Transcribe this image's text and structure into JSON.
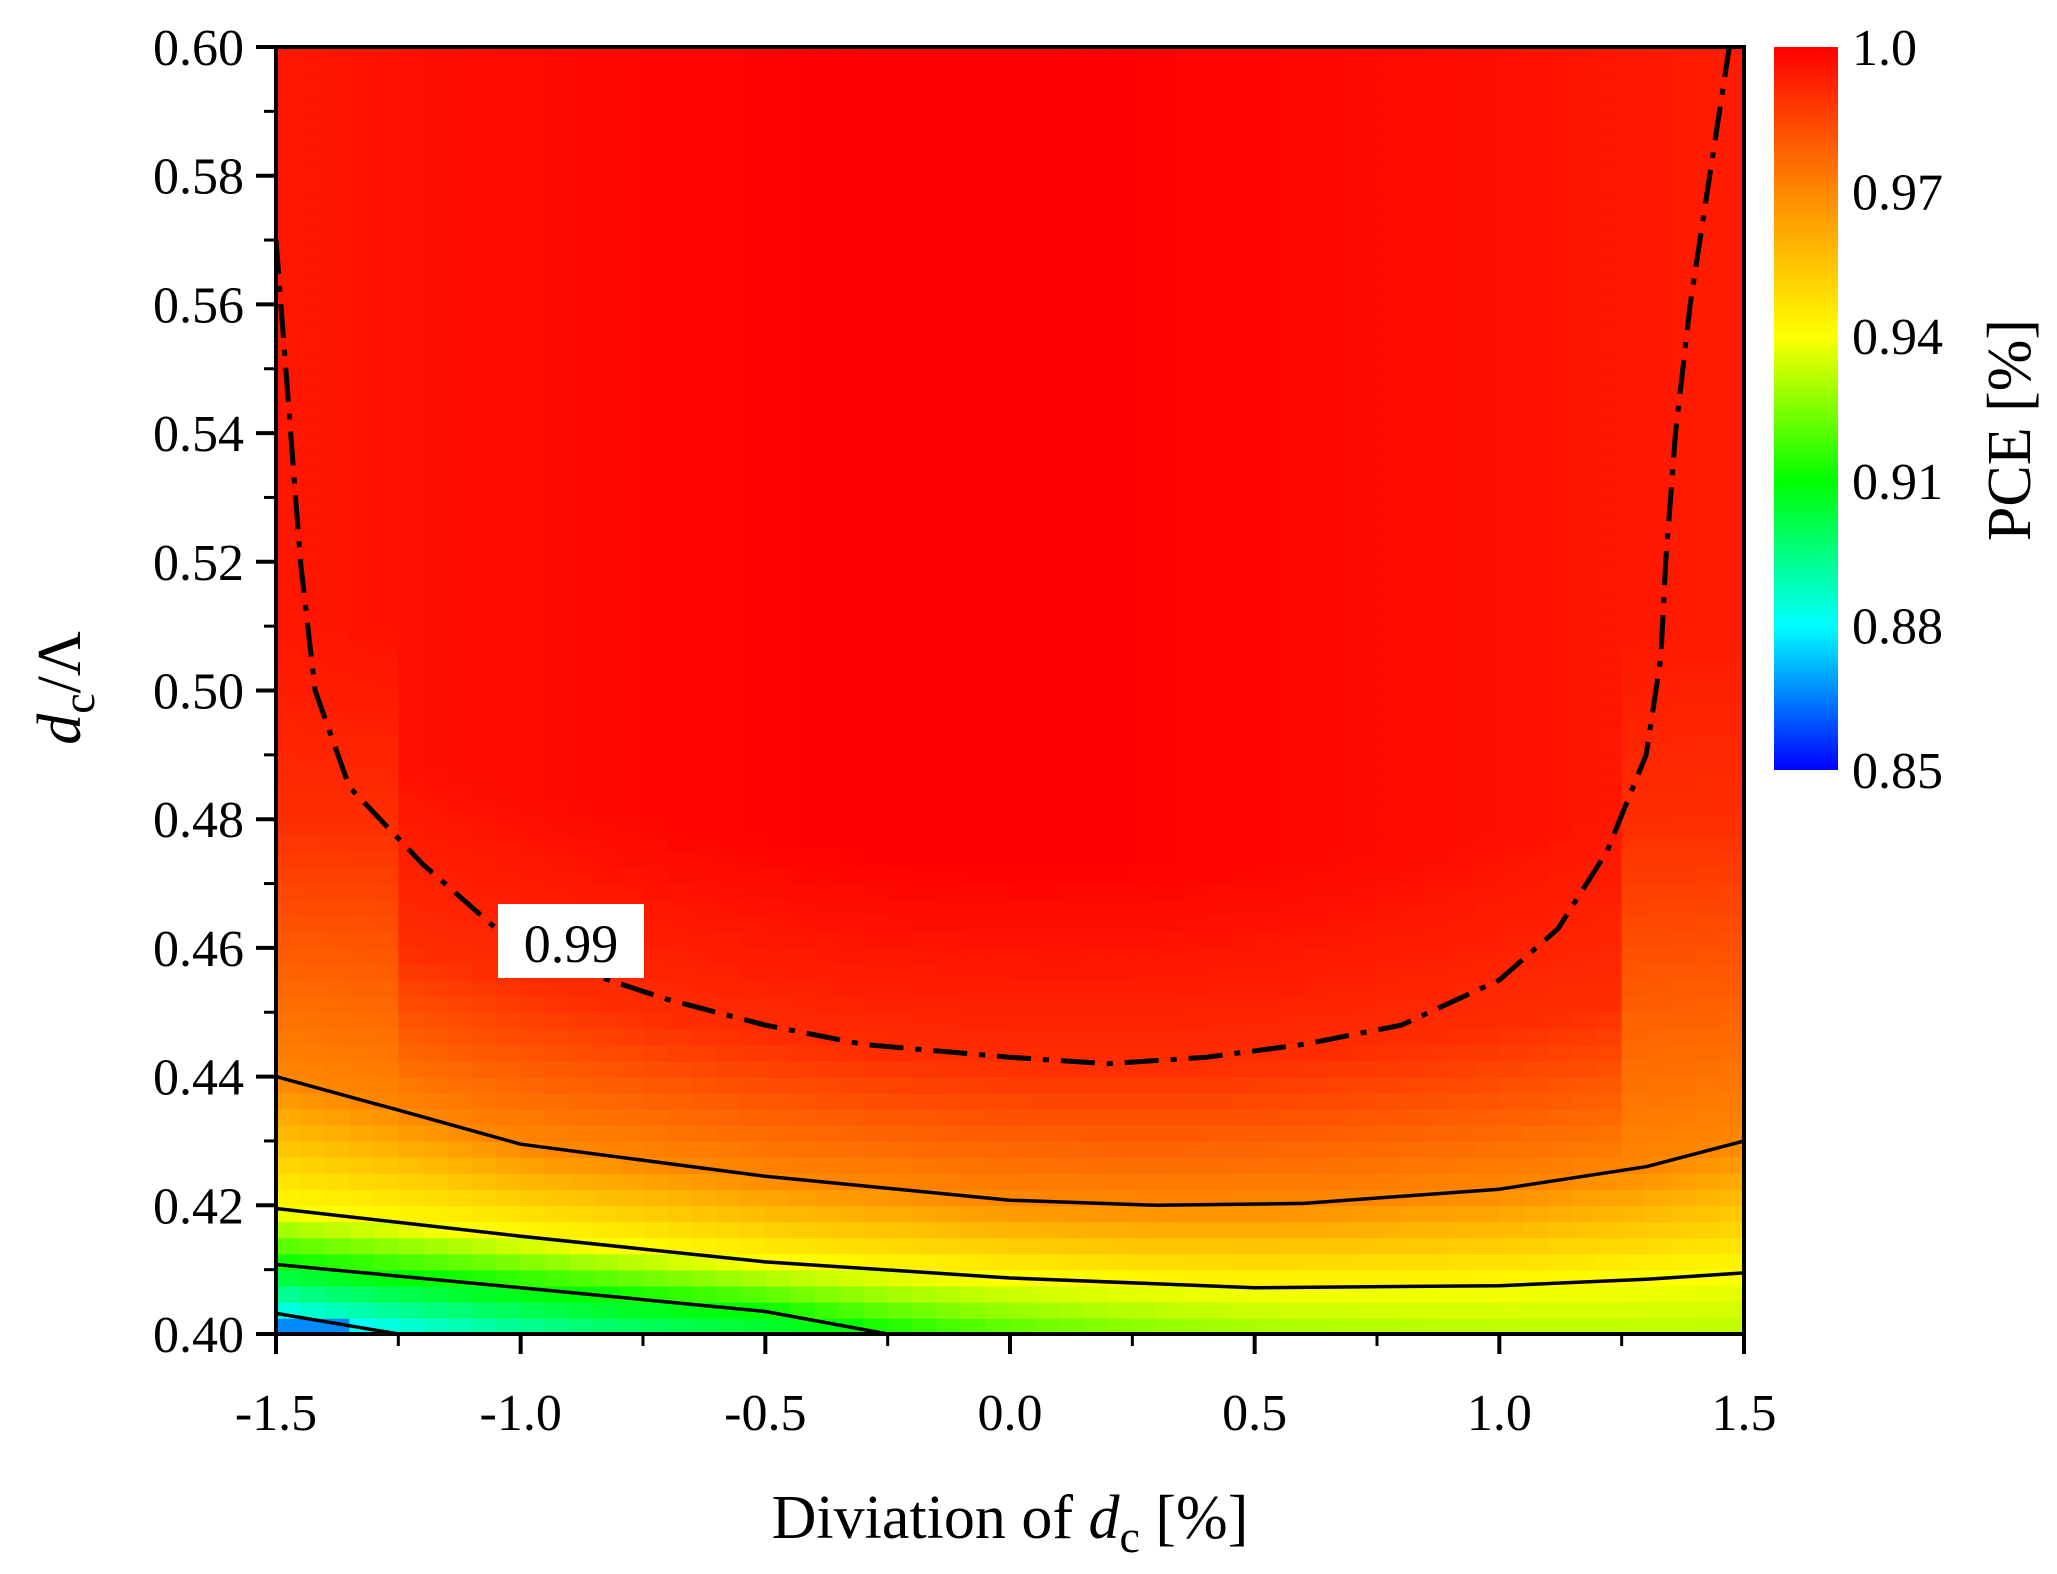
{
  "chart_data": {
    "type": "heatmap",
    "subtype": "filled-contour",
    "xlabel": {
      "text": "Diviation of ",
      "var": "d",
      "sub": "c",
      "unit": " [%]"
    },
    "ylabel": {
      "var": "d",
      "sub": "c",
      "suffix": "/Λ"
    },
    "xlim": [
      -1.5,
      1.5
    ],
    "ylim": [
      0.4,
      0.6
    ],
    "x_ticks": [
      -1.5,
      -1.0,
      -0.5,
      0.0,
      0.5,
      1.0,
      1.5
    ],
    "x_tick_labels": [
      "-1.5",
      "-1.0",
      "-0.5",
      "0.0",
      "0.5",
      "1.0",
      "1.5"
    ],
    "x_minor_ticks": [
      -1.25,
      -0.75,
      -0.25,
      0.25,
      0.75,
      1.25
    ],
    "y_ticks": [
      0.4,
      0.42,
      0.44,
      0.46,
      0.48,
      0.5,
      0.52,
      0.54,
      0.56,
      0.58,
      0.6
    ],
    "y_tick_labels": [
      "0.40",
      "0.42",
      "0.44",
      "0.46",
      "0.48",
      "0.50",
      "0.52",
      "0.54",
      "0.56",
      "0.58",
      "0.60"
    ],
    "colorbar": {
      "title": "PCE [%]",
      "range": [
        0.85,
        1.0
      ],
      "tick_values": [
        1.0,
        0.97,
        0.94,
        0.91,
        0.88,
        0.85
      ],
      "tick_labels": [
        "1.0",
        "0.97",
        "0.94",
        "0.91",
        "0.88",
        "0.85"
      ],
      "colors": [
        "#0000ff",
        "#00ffff",
        "#00ff00",
        "#ffff00",
        "#ff8800",
        "#ff0000"
      ]
    },
    "contours": [
      {
        "name": "contour-0.99",
        "level": 0.99,
        "style": "dash-dot",
        "label": "0.99",
        "points": [
          [
            -1.5,
            0.57
          ],
          [
            -1.48,
            0.55
          ],
          [
            -1.45,
            0.52
          ],
          [
            -1.42,
            0.5
          ],
          [
            -1.35,
            0.485
          ],
          [
            -1.2,
            0.473
          ],
          [
            -1.05,
            0.463
          ],
          [
            -0.9,
            0.457
          ],
          [
            -0.7,
            0.452
          ],
          [
            -0.5,
            0.448
          ],
          [
            -0.3,
            0.445
          ],
          [
            0.0,
            0.443
          ],
          [
            0.2,
            0.442
          ],
          [
            0.4,
            0.443
          ],
          [
            0.6,
            0.445
          ],
          [
            0.8,
            0.448
          ],
          [
            1.0,
            0.455
          ],
          [
            1.12,
            0.463
          ],
          [
            1.22,
            0.475
          ],
          [
            1.3,
            0.49
          ],
          [
            1.33,
            0.505
          ],
          [
            1.34,
            0.52
          ],
          [
            1.36,
            0.54
          ],
          [
            1.39,
            0.56
          ],
          [
            1.43,
            0.58
          ],
          [
            1.47,
            0.6
          ]
        ]
      },
      {
        "name": "contour-upper",
        "level": 0.97,
        "style": "solid",
        "label": "",
        "points": [
          [
            -1.5,
            0.44
          ],
          [
            -1.25,
            0.4348
          ],
          [
            -1.0,
            0.4295
          ],
          [
            -0.5,
            0.4245
          ],
          [
            0.0,
            0.4208
          ],
          [
            0.3,
            0.42
          ],
          [
            0.6,
            0.4203
          ],
          [
            1.0,
            0.4225
          ],
          [
            1.3,
            0.426
          ],
          [
            1.5,
            0.43
          ]
        ]
      },
      {
        "name": "contour-middle",
        "level": 0.94,
        "style": "solid",
        "label": "",
        "points": [
          [
            -1.5,
            0.4195
          ],
          [
            -1.0,
            0.4152
          ],
          [
            -0.5,
            0.4112
          ],
          [
            0.0,
            0.4087
          ],
          [
            0.5,
            0.4072
          ],
          [
            1.0,
            0.4075
          ],
          [
            1.3,
            0.4085
          ],
          [
            1.5,
            0.4095
          ]
        ]
      },
      {
        "name": "contour-lower",
        "level": 0.91,
        "style": "solid",
        "label": "",
        "points": [
          [
            -1.5,
            0.4108
          ],
          [
            -1.0,
            0.4072
          ],
          [
            -0.5,
            0.4035
          ],
          [
            -0.25,
            0.4
          ]
        ]
      },
      {
        "name": "contour-bottom",
        "level": 0.88,
        "style": "solid",
        "label": "",
        "points": [
          [
            -1.5,
            0.4032
          ],
          [
            -1.25,
            0.4
          ]
        ]
      }
    ]
  }
}
